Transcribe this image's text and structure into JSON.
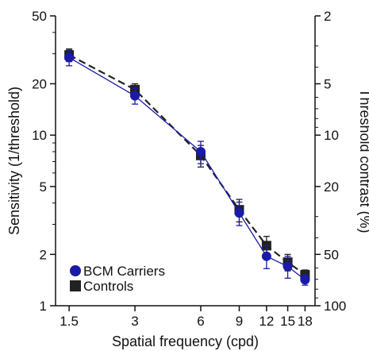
{
  "chart_data": {
    "type": "line",
    "xscale": "log",
    "yscale": "log",
    "xlabel": "Spatial frequency (cpd)",
    "ylabel": "Sensitivity (1/threshold)",
    "y2label": "Threshold contrast (%)",
    "xlim": [
      1.3,
      20
    ],
    "ylim": [
      1,
      50
    ],
    "x_ticks": [
      1.5,
      3,
      6,
      9,
      12,
      15,
      18
    ],
    "x_tick_labels": [
      "1.5",
      "3",
      "6",
      "9",
      "12",
      "15",
      "18"
    ],
    "y_ticks": [
      1,
      2,
      5,
      10,
      20,
      50
    ],
    "y_tick_labels": [
      "1",
      "2",
      "5",
      "10",
      "20",
      "50"
    ],
    "y2_ticks": [
      2,
      5,
      10,
      20,
      50,
      100
    ],
    "y2_tick_labels": [
      "2",
      "5",
      "10",
      "20",
      "50",
      "100"
    ],
    "legend_position": "bottom-left",
    "series": [
      {
        "name": "BCM Carriers",
        "color": "#1a1aaa",
        "marker": "circle",
        "line": "solid",
        "x": [
          1.5,
          3,
          6,
          9,
          12,
          15,
          18
        ],
        "y": [
          28.5,
          17.0,
          8.0,
          3.5,
          1.95,
          1.7,
          1.42
        ],
        "err": [
          3.0,
          1.8,
          1.2,
          0.55,
          0.3,
          0.25,
          0.1
        ]
      },
      {
        "name": "Controls",
        "color": "#222222",
        "marker": "square",
        "line": "dashed",
        "x": [
          1.5,
          3,
          6,
          9,
          12,
          15,
          18
        ],
        "y": [
          29.5,
          18.5,
          7.6,
          3.65,
          2.25,
          1.8,
          1.52
        ],
        "err": [
          2.5,
          1.5,
          1.1,
          0.55,
          0.3,
          0.2,
          0.1
        ]
      }
    ]
  }
}
